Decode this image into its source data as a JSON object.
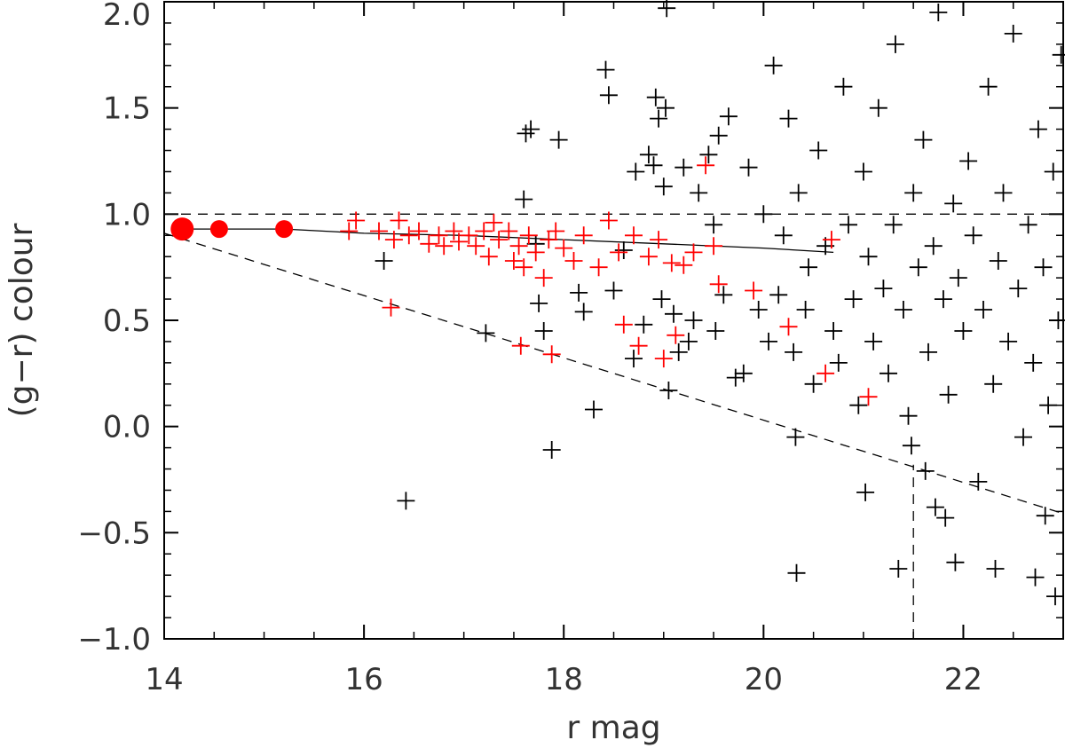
{
  "chart_data": {
    "type": "scatter",
    "title": "",
    "xlabel": "r mag",
    "ylabel": "(g−r) colour",
    "xlim": [
      14,
      23
    ],
    "ylim": [
      -1.0,
      2.0
    ],
    "x_ticks": [
      14,
      16,
      18,
      20,
      22
    ],
    "x_tick_labels": [
      "14",
      "16",
      "18",
      "20",
      "22"
    ],
    "y_ticks": [
      -1.0,
      -0.5,
      0.0,
      0.5,
      1.0,
      1.5,
      2.0
    ],
    "y_tick_labels": [
      "−1.0",
      "−0.5",
      "0.0",
      "0.5",
      "1.0",
      "1.5",
      "2.0"
    ],
    "grid": false,
    "legend": "none",
    "colors": {
      "field": "#000000",
      "members": "#ff0000",
      "axes": "#000000",
      "text": "#333333"
    },
    "series": [
      {
        "marker": "plus",
        "color": "#000000",
        "points": [
          [
            16.2,
            0.78
          ],
          [
            16.42,
            -0.35
          ],
          [
            17.22,
            0.44
          ],
          [
            17.6,
            1.07
          ],
          [
            17.62,
            1.38
          ],
          [
            17.67,
            1.4
          ],
          [
            17.72,
            0.86
          ],
          [
            17.75,
            0.58
          ],
          [
            17.8,
            0.45
          ],
          [
            17.88,
            -0.11
          ],
          [
            17.95,
            1.35
          ],
          [
            18.15,
            0.63
          ],
          [
            18.2,
            0.54
          ],
          [
            18.3,
            0.08
          ],
          [
            18.42,
            1.68
          ],
          [
            18.45,
            1.56
          ],
          [
            18.5,
            0.64
          ],
          [
            18.6,
            0.83
          ],
          [
            18.7,
            0.32
          ],
          [
            18.72,
            1.2
          ],
          [
            18.8,
            0.48
          ],
          [
            18.85,
            1.28
          ],
          [
            18.9,
            1.23
          ],
          [
            18.92,
            1.55
          ],
          [
            18.95,
            1.45
          ],
          [
            18.98,
            0.6
          ],
          [
            19.0,
            1.13
          ],
          [
            19.02,
            1.5
          ],
          [
            19.03,
            1.97
          ],
          [
            19.05,
            0.17
          ],
          [
            19.1,
            0.53
          ],
          [
            19.15,
            0.35
          ],
          [
            19.2,
            1.22
          ],
          [
            19.25,
            0.4
          ],
          [
            19.3,
            0.5
          ],
          [
            19.35,
            1.1
          ],
          [
            19.45,
            1.28
          ],
          [
            19.5,
            0.95
          ],
          [
            19.52,
            0.45
          ],
          [
            19.55,
            1.37
          ],
          [
            19.6,
            0.62
          ],
          [
            19.65,
            1.46
          ],
          [
            19.72,
            0.23
          ],
          [
            19.8,
            0.25
          ],
          [
            19.85,
            1.22
          ],
          [
            19.95,
            0.55
          ],
          [
            20.0,
            1.0
          ],
          [
            20.05,
            0.4
          ],
          [
            20.1,
            1.7
          ],
          [
            20.15,
            0.62
          ],
          [
            20.2,
            0.9
          ],
          [
            20.25,
            1.45
          ],
          [
            20.3,
            0.35
          ],
          [
            20.32,
            -0.05
          ],
          [
            20.33,
            -0.69
          ],
          [
            20.35,
            1.1
          ],
          [
            20.42,
            0.55
          ],
          [
            20.45,
            0.75
          ],
          [
            20.5,
            0.2
          ],
          [
            20.55,
            1.3
          ],
          [
            20.62,
            0.85
          ],
          [
            20.7,
            0.45
          ],
          [
            20.75,
            0.3
          ],
          [
            20.8,
            1.6
          ],
          [
            20.85,
            0.95
          ],
          [
            20.9,
            0.6
          ],
          [
            20.95,
            0.1
          ],
          [
            21.0,
            1.2
          ],
          [
            21.02,
            -0.31
          ],
          [
            21.05,
            0.8
          ],
          [
            21.1,
            0.4
          ],
          [
            21.15,
            1.5
          ],
          [
            21.2,
            0.65
          ],
          [
            21.25,
            0.25
          ],
          [
            21.3,
            0.95
          ],
          [
            21.32,
            1.8
          ],
          [
            21.35,
            -0.67
          ],
          [
            21.4,
            0.55
          ],
          [
            21.45,
            0.05
          ],
          [
            21.48,
            -0.09
          ],
          [
            21.5,
            1.1
          ],
          [
            21.55,
            0.75
          ],
          [
            21.6,
            1.35
          ],
          [
            21.62,
            -0.21
          ],
          [
            21.65,
            0.35
          ],
          [
            21.7,
            0.85
          ],
          [
            21.72,
            -0.38
          ],
          [
            21.75,
            1.95
          ],
          [
            21.8,
            0.6
          ],
          [
            21.82,
            -0.43
          ],
          [
            21.85,
            0.15
          ],
          [
            21.9,
            1.05
          ],
          [
            21.92,
            -0.64
          ],
          [
            21.95,
            0.7
          ],
          [
            22.0,
            0.45
          ],
          [
            22.05,
            1.25
          ],
          [
            22.1,
            0.9
          ],
          [
            22.15,
            -0.26
          ],
          [
            22.2,
            0.55
          ],
          [
            22.25,
            1.6
          ],
          [
            22.3,
            0.2
          ],
          [
            22.32,
            -0.67
          ],
          [
            22.35,
            0.78
          ],
          [
            22.4,
            1.1
          ],
          [
            22.45,
            0.4
          ],
          [
            22.5,
            1.85
          ],
          [
            22.55,
            0.65
          ],
          [
            22.6,
            -0.05
          ],
          [
            22.65,
            0.95
          ],
          [
            22.7,
            0.3
          ],
          [
            22.72,
            -0.71
          ],
          [
            22.75,
            1.4
          ],
          [
            22.8,
            0.75
          ],
          [
            22.82,
            -0.42
          ],
          [
            22.85,
            0.1
          ],
          [
            22.9,
            1.2
          ],
          [
            22.92,
            -0.8
          ],
          [
            22.95,
            0.5
          ],
          [
            22.98,
            1.75
          ]
        ]
      },
      {
        "marker": "plus",
        "color": "#ff0000",
        "points": [
          [
            15.85,
            0.92
          ],
          [
            15.92,
            0.97
          ],
          [
            16.15,
            0.92
          ],
          [
            16.27,
            0.56
          ],
          [
            16.3,
            0.88
          ],
          [
            16.35,
            0.97
          ],
          [
            16.45,
            0.9
          ],
          [
            16.55,
            0.92
          ],
          [
            16.65,
            0.86
          ],
          [
            16.75,
            0.9
          ],
          [
            16.8,
            0.85
          ],
          [
            16.9,
            0.92
          ],
          [
            16.95,
            0.87
          ],
          [
            17.05,
            0.9
          ],
          [
            17.12,
            0.85
          ],
          [
            17.2,
            0.92
          ],
          [
            17.25,
            0.8
          ],
          [
            17.3,
            0.96
          ],
          [
            17.35,
            0.88
          ],
          [
            17.45,
            0.92
          ],
          [
            17.5,
            0.78
          ],
          [
            17.55,
            0.85
          ],
          [
            17.57,
            0.38
          ],
          [
            17.6,
            0.75
          ],
          [
            17.65,
            0.9
          ],
          [
            17.72,
            0.82
          ],
          [
            17.8,
            0.7
          ],
          [
            17.85,
            0.88
          ],
          [
            17.88,
            0.34
          ],
          [
            17.92,
            0.92
          ],
          [
            18.0,
            0.84
          ],
          [
            18.1,
            0.78
          ],
          [
            18.2,
            0.9
          ],
          [
            18.35,
            0.75
          ],
          [
            18.45,
            0.97
          ],
          [
            18.55,
            0.82
          ],
          [
            18.6,
            0.48
          ],
          [
            18.7,
            0.9
          ],
          [
            18.75,
            0.38
          ],
          [
            18.85,
            0.8
          ],
          [
            18.95,
            0.88
          ],
          [
            19.0,
            0.32
          ],
          [
            19.08,
            0.77
          ],
          [
            19.12,
            0.43
          ],
          [
            19.2,
            0.76
          ],
          [
            19.3,
            0.82
          ],
          [
            19.42,
            1.23
          ],
          [
            19.5,
            0.85
          ],
          [
            19.55,
            0.67
          ],
          [
            19.9,
            0.64
          ],
          [
            20.25,
            0.47
          ],
          [
            20.62,
            0.25
          ],
          [
            20.68,
            0.88
          ],
          [
            21.05,
            0.14
          ]
        ]
      },
      {
        "marker": "circle",
        "color": "#ff0000",
        "points": [
          [
            14.18,
            0.93,
            3
          ],
          [
            14.55,
            0.93,
            2
          ],
          [
            15.2,
            0.93,
            2
          ]
        ]
      }
    ],
    "lines": [
      {
        "style": "solid",
        "points": [
          [
            14.18,
            0.93
          ],
          [
            15.2,
            0.93
          ],
          [
            16.0,
            0.91
          ],
          [
            17.0,
            0.9
          ],
          [
            18.0,
            0.88
          ],
          [
            19.0,
            0.86
          ],
          [
            20.0,
            0.84
          ],
          [
            20.7,
            0.82
          ]
        ]
      },
      {
        "style": "dashed",
        "points": [
          [
            14.0,
            1.0
          ],
          [
            23.0,
            1.0
          ]
        ]
      },
      {
        "style": "dashed",
        "points": [
          [
            14.0,
            0.91
          ],
          [
            23.0,
            -0.41
          ]
        ]
      },
      {
        "style": "dashed",
        "points": [
          [
            21.5,
            -1.0
          ],
          [
            21.5,
            -0.18
          ]
        ]
      }
    ]
  }
}
